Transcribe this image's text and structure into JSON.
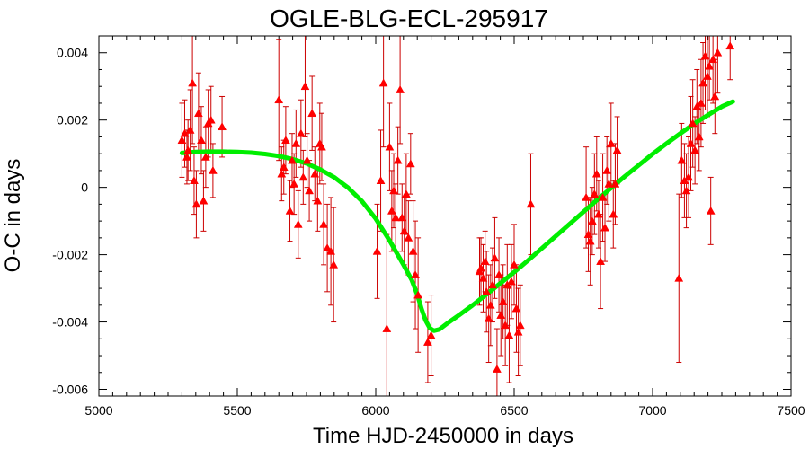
{
  "chart_data": {
    "type": "scatter",
    "title": "OGLE-BLG-ECL-295917",
    "xlabel": "Time HJD-2450000 in days",
    "ylabel": "O-C in days",
    "xlim": [
      5000,
      7500
    ],
    "ylim": [
      -0.0062,
      0.0045
    ],
    "x_ticks": [
      5000,
      5500,
      6000,
      6500,
      7000,
      7500
    ],
    "y_ticks": [
      0.004,
      0.002,
      0,
      -0.002,
      -0.004,
      -0.006
    ],
    "x_tick_labels": [
      "5000",
      "5500",
      "6000",
      "6500",
      "7000",
      "7500"
    ],
    "y_tick_labels": [
      "0.004",
      "0.002",
      "0",
      "-0.002",
      "-0.004",
      "-0.006"
    ],
    "grid": false,
    "colors": {
      "points": "#ff0000",
      "errorbars": "#cc0000",
      "fit": "#00ee00"
    },
    "series": [
      {
        "marker": "triangle",
        "points": [
          [
            5300,
            0.0014,
            0.0011
          ],
          [
            5310,
            0.0016,
            0.001
          ],
          [
            5318,
            0.0009,
            0.0008
          ],
          [
            5322,
            0.0011,
            0.0009
          ],
          [
            5330,
            0.0017,
            0.0012
          ],
          [
            5338,
            0.0031,
            0.0018
          ],
          [
            5344,
            0.0002,
            0.001
          ],
          [
            5352,
            -0.0005,
            0.001
          ],
          [
            5360,
            0.0022,
            0.0012
          ],
          [
            5370,
            0.0014,
            0.001
          ],
          [
            5378,
            -0.0004,
            0.0009
          ],
          [
            5386,
            0.0009,
            0.0009
          ],
          [
            5395,
            0.0019,
            0.001
          ],
          [
            5405,
            0.002,
            0.001
          ],
          [
            5412,
            0.0005,
            0.0008
          ],
          [
            5445,
            0.0018,
            0.0009
          ],
          [
            5650,
            0.0026,
            0.0018
          ],
          [
            5660,
            0.0004,
            0.0008
          ],
          [
            5668,
            0.0006,
            0.0008
          ],
          [
            5675,
            0.0014,
            0.001
          ],
          [
            5690,
            -0.0007,
            0.0009
          ],
          [
            5698,
            0.0008,
            0.0008
          ],
          [
            5705,
            0.0001,
            0.0009
          ],
          [
            5712,
            0.0013,
            0.001
          ],
          [
            5720,
            -0.0011,
            0.001
          ],
          [
            5730,
            0.0016,
            0.001
          ],
          [
            5738,
            0.0003,
            0.0008
          ],
          [
            5745,
            0.003,
            0.0015
          ],
          [
            5752,
            0.0008,
            0.0008
          ],
          [
            5760,
            -0.0001,
            0.0009
          ],
          [
            5770,
            0.0022,
            0.0011
          ],
          [
            5780,
            0.0004,
            0.0008
          ],
          [
            5790,
            -0.0004,
            0.0009
          ],
          [
            5798,
            0.0013,
            0.0012
          ],
          [
            5805,
            0.0012,
            0.001
          ],
          [
            5812,
            -0.0011,
            0.0012
          ],
          [
            5825,
            -0.0018,
            0.0013
          ],
          [
            5838,
            -0.0019,
            0.0016
          ],
          [
            5848,
            -0.0023,
            0.0017
          ],
          [
            6005,
            -0.0019,
            0.0014
          ],
          [
            6018,
            0.0002,
            0.0015
          ],
          [
            6028,
            0.0031,
            0.0019
          ],
          [
            6040,
            -0.0042,
            0.0028
          ],
          [
            6050,
            0.0012,
            0.0013
          ],
          [
            6058,
            -0.0007,
            0.0012
          ],
          [
            6065,
            -0.0001,
            0.0011
          ],
          [
            6072,
            -0.0009,
            0.001
          ],
          [
            6080,
            0.0008,
            0.001
          ],
          [
            6088,
            0.0029,
            0.0016
          ],
          [
            6095,
            -0.0009,
            0.001
          ],
          [
            6103,
            -0.0013,
            0.001
          ],
          [
            6110,
            -0.0002,
            0.0012
          ],
          [
            6118,
            -0.0015,
            0.0011
          ],
          [
            6126,
            0.0007,
            0.0009
          ],
          [
            6135,
            -0.0019,
            0.0015
          ],
          [
            6143,
            -0.0026,
            0.0016
          ],
          [
            6153,
            -0.0032,
            0.0017
          ],
          [
            6188,
            -0.0046,
            0.0012
          ],
          [
            6200,
            -0.0044,
            0.0012
          ],
          [
            6375,
            -0.0025,
            0.001
          ],
          [
            6380,
            -0.0024,
            0.0009
          ],
          [
            6388,
            -0.0027,
            0.001
          ],
          [
            6395,
            -0.0022,
            0.0009
          ],
          [
            6400,
            -0.0031,
            0.0012
          ],
          [
            6408,
            -0.0039,
            0.0013
          ],
          [
            6415,
            -0.0035,
            0.0012
          ],
          [
            6422,
            -0.0029,
            0.0011
          ],
          [
            6430,
            -0.0021,
            0.0012
          ],
          [
            6438,
            -0.0054,
            0.0012
          ],
          [
            6445,
            -0.0026,
            0.0011
          ],
          [
            6452,
            -0.0038,
            0.0012
          ],
          [
            6460,
            -0.0034,
            0.0011
          ],
          [
            6468,
            -0.0041,
            0.0012
          ],
          [
            6475,
            -0.0029,
            0.0012
          ],
          [
            6482,
            -0.0044,
            0.0014
          ],
          [
            6490,
            -0.0028,
            0.0011
          ],
          [
            6500,
            -0.0023,
            0.0012
          ],
          [
            6508,
            -0.0036,
            0.0013
          ],
          [
            6515,
            -0.0043,
            0.0013
          ],
          [
            6522,
            -0.0041,
            0.0012
          ],
          [
            6560,
            -0.0005,
            0.0015
          ],
          [
            6760,
            -0.0003,
            0.0015
          ],
          [
            6768,
            -0.0014,
            0.0011
          ],
          [
            6775,
            -0.0016,
            0.0013
          ],
          [
            6782,
            -0.001,
            0.001
          ],
          [
            6790,
            -0.0002,
            0.0012
          ],
          [
            6798,
            0.0004,
            0.0011
          ],
          [
            6805,
            -0.0008,
            0.001
          ],
          [
            6812,
            -0.0022,
            0.0014
          ],
          [
            6820,
            -0.0003,
            0.0013
          ],
          [
            6828,
            -0.0012,
            0.001
          ],
          [
            6835,
            0.0005,
            0.001
          ],
          [
            6842,
            0.0001,
            0.0011
          ],
          [
            6850,
            0.0013,
            0.0012
          ],
          [
            6858,
            -0.0008,
            0.001
          ],
          [
            6865,
            0.0001,
            0.0012
          ],
          [
            6872,
            0.0011,
            0.001
          ],
          [
            7095,
            -0.0027,
            0.0025
          ],
          [
            7105,
            0.0008,
            0.0011
          ],
          [
            7115,
            0.0002,
            0.0011
          ],
          [
            7122,
            -0.0001,
            0.0011
          ],
          [
            7130,
            0.0003,
            0.0012
          ],
          [
            7138,
            0.0013,
            0.0014
          ],
          [
            7145,
            0.0019,
            0.0013
          ],
          [
            7153,
            0.0011,
            0.001
          ],
          [
            7160,
            0.0024,
            0.0011
          ],
          [
            7168,
            0.0015,
            0.001
          ],
          [
            7175,
            0.0025,
            0.0013
          ],
          [
            7182,
            0.0031,
            0.0012
          ],
          [
            7190,
            0.0039,
            0.0016
          ],
          [
            7198,
            0.0033,
            0.0012
          ],
          [
            7205,
            0.0036,
            0.001
          ],
          [
            7210,
            -0.0007,
            0.001
          ],
          [
            7218,
            0.0038,
            0.0013
          ],
          [
            7225,
            0.0027,
            0.0011
          ],
          [
            7235,
            0.004,
            0.0012
          ],
          [
            7280,
            0.0042,
            0.001
          ]
        ]
      }
    ],
    "fit_curve": [
      [
        5300,
        0.00102
      ],
      [
        5350,
        0.00105
      ],
      [
        5400,
        0.00106
      ],
      [
        5450,
        0.00106
      ],
      [
        5500,
        0.00105
      ],
      [
        5550,
        0.00103
      ],
      [
        5600,
        0.00099
      ],
      [
        5650,
        0.00093
      ],
      [
        5700,
        0.00084
      ],
      [
        5750,
        0.00071
      ],
      [
        5800,
        0.00053
      ],
      [
        5850,
        0.0003
      ],
      [
        5900,
        -1e-05
      ],
      [
        5950,
        -0.00041
      ],
      [
        6000,
        -0.00093
      ],
      [
        6050,
        -0.00158
      ],
      [
        6100,
        -0.0023
      ],
      [
        6130,
        -0.00275
      ],
      [
        6150,
        -0.00318
      ],
      [
        6165,
        -0.0036
      ],
      [
        6180,
        -0.00395
      ],
      [
        6195,
        -0.00418
      ],
      [
        6210,
        -0.00426
      ],
      [
        6230,
        -0.00422
      ],
      [
        6260,
        -0.00403
      ],
      [
        6300,
        -0.0038
      ],
      [
        6350,
        -0.0035
      ],
      [
        6400,
        -0.00318
      ],
      [
        6450,
        -0.00285
      ],
      [
        6500,
        -0.00252
      ],
      [
        6550,
        -0.00217
      ],
      [
        6600,
        -0.00181
      ],
      [
        6650,
        -0.00145
      ],
      [
        6700,
        -0.00109
      ],
      [
        6750,
        -0.00073
      ],
      [
        6800,
        -0.00037
      ],
      [
        6850,
        -2e-05
      ],
      [
        6900,
        0.00033
      ],
      [
        6950,
        0.00066
      ],
      [
        7000,
        0.00099
      ],
      [
        7050,
        0.0013
      ],
      [
        7100,
        0.0016
      ],
      [
        7150,
        0.00189
      ],
      [
        7200,
        0.00215
      ],
      [
        7250,
        0.0024
      ],
      [
        7290,
        0.00255
      ]
    ]
  }
}
